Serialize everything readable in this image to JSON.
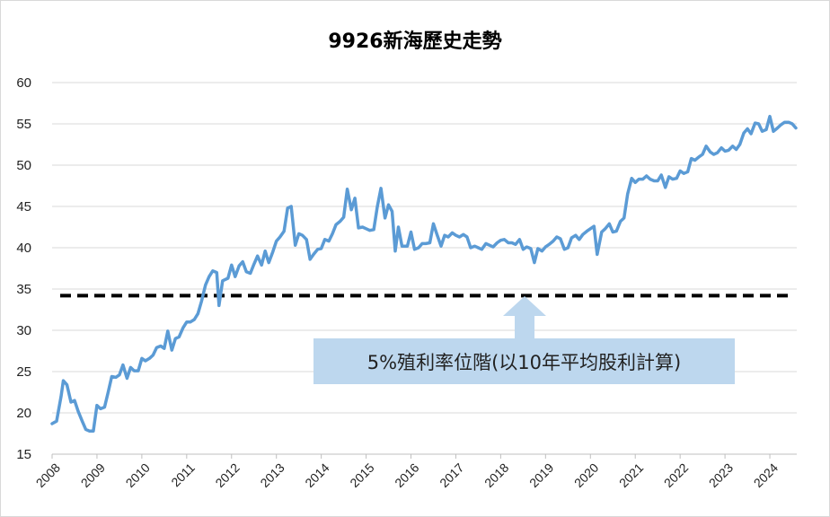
{
  "chart_data": {
    "type": "line",
    "title": "9926新海歷史走勢",
    "xlabel": "",
    "ylabel": "",
    "ylim": [
      15,
      60
    ],
    "yticks": [
      15,
      20,
      25,
      30,
      35,
      40,
      45,
      50,
      55,
      60
    ],
    "xlim": [
      2008,
      2024.6
    ],
    "xticks": [
      "2008",
      "2009",
      "2010",
      "2011",
      "2012",
      "2013",
      "2014",
      "2015",
      "2016",
      "2017",
      "2018",
      "2019",
      "2020",
      "2021",
      "2022",
      "2023",
      "2024"
    ],
    "grid": "horizontal",
    "series": [
      {
        "color": "#5b9bd5",
        "points": [
          [
            2008.0,
            18.7
          ],
          [
            2008.1,
            19.0
          ],
          [
            2008.2,
            22.0
          ],
          [
            2008.25,
            23.9
          ],
          [
            2008.33,
            23.4
          ],
          [
            2008.42,
            21.3
          ],
          [
            2008.5,
            21.5
          ],
          [
            2008.58,
            20.2
          ],
          [
            2008.67,
            19.0
          ],
          [
            2008.75,
            18.0
          ],
          [
            2008.83,
            17.8
          ],
          [
            2008.92,
            17.8
          ],
          [
            2009.0,
            20.9
          ],
          [
            2009.08,
            20.5
          ],
          [
            2009.17,
            20.7
          ],
          [
            2009.25,
            22.5
          ],
          [
            2009.33,
            24.4
          ],
          [
            2009.42,
            24.3
          ],
          [
            2009.5,
            24.6
          ],
          [
            2009.58,
            25.8
          ],
          [
            2009.67,
            24.2
          ],
          [
            2009.75,
            25.5
          ],
          [
            2009.83,
            25.1
          ],
          [
            2009.92,
            25.1
          ],
          [
            2010.0,
            26.6
          ],
          [
            2010.08,
            26.3
          ],
          [
            2010.17,
            26.6
          ],
          [
            2010.25,
            27.0
          ],
          [
            2010.33,
            27.9
          ],
          [
            2010.42,
            28.1
          ],
          [
            2010.5,
            27.8
          ],
          [
            2010.58,
            29.9
          ],
          [
            2010.67,
            27.6
          ],
          [
            2010.75,
            29.0
          ],
          [
            2010.83,
            29.2
          ],
          [
            2010.92,
            30.3
          ],
          [
            2011.0,
            31.0
          ],
          [
            2011.08,
            31.0
          ],
          [
            2011.17,
            31.3
          ],
          [
            2011.25,
            32.0
          ],
          [
            2011.33,
            33.5
          ],
          [
            2011.42,
            35.5
          ],
          [
            2011.5,
            36.5
          ],
          [
            2011.58,
            37.2
          ],
          [
            2011.67,
            37.0
          ],
          [
            2011.72,
            33.0
          ],
          [
            2011.8,
            36.0
          ],
          [
            2011.92,
            36.3
          ],
          [
            2012.0,
            37.9
          ],
          [
            2012.08,
            36.5
          ],
          [
            2012.17,
            37.8
          ],
          [
            2012.25,
            38.3
          ],
          [
            2012.33,
            37.1
          ],
          [
            2012.42,
            36.9
          ],
          [
            2012.5,
            38.0
          ],
          [
            2012.58,
            39.0
          ],
          [
            2012.67,
            37.9
          ],
          [
            2012.75,
            39.6
          ],
          [
            2012.83,
            38.2
          ],
          [
            2012.92,
            39.5
          ],
          [
            2013.0,
            40.8
          ],
          [
            2013.08,
            41.3
          ],
          [
            2013.17,
            42.0
          ],
          [
            2013.25,
            44.8
          ],
          [
            2013.33,
            45.0
          ],
          [
            2013.42,
            40.3
          ],
          [
            2013.5,
            41.7
          ],
          [
            2013.58,
            41.5
          ],
          [
            2013.67,
            41.0
          ],
          [
            2013.75,
            38.6
          ],
          [
            2013.83,
            39.2
          ],
          [
            2013.92,
            39.8
          ],
          [
            2014.0,
            39.9
          ],
          [
            2014.08,
            41.0
          ],
          [
            2014.17,
            40.8
          ],
          [
            2014.25,
            41.7
          ],
          [
            2014.33,
            42.8
          ],
          [
            2014.42,
            43.2
          ],
          [
            2014.5,
            43.7
          ],
          [
            2014.58,
            47.1
          ],
          [
            2014.67,
            44.6
          ],
          [
            2014.75,
            46.0
          ],
          [
            2014.83,
            42.4
          ],
          [
            2014.92,
            42.5
          ],
          [
            2015.0,
            42.3
          ],
          [
            2015.08,
            42.1
          ],
          [
            2015.17,
            42.2
          ],
          [
            2015.25,
            45.0
          ],
          [
            2015.33,
            47.2
          ],
          [
            2015.42,
            43.6
          ],
          [
            2015.5,
            45.2
          ],
          [
            2015.58,
            44.4
          ],
          [
            2015.65,
            39.6
          ],
          [
            2015.72,
            42.5
          ],
          [
            2015.8,
            40.2
          ],
          [
            2015.92,
            40.2
          ],
          [
            2016.0,
            41.9
          ],
          [
            2016.08,
            39.8
          ],
          [
            2016.17,
            40.0
          ],
          [
            2016.25,
            40.5
          ],
          [
            2016.33,
            40.5
          ],
          [
            2016.42,
            40.6
          ],
          [
            2016.5,
            42.9
          ],
          [
            2016.58,
            41.6
          ],
          [
            2016.67,
            40.2
          ],
          [
            2016.75,
            41.5
          ],
          [
            2016.83,
            41.3
          ],
          [
            2016.92,
            41.8
          ],
          [
            2017.0,
            41.5
          ],
          [
            2017.08,
            41.3
          ],
          [
            2017.17,
            41.6
          ],
          [
            2017.25,
            41.3
          ],
          [
            2017.33,
            40.0
          ],
          [
            2017.42,
            40.2
          ],
          [
            2017.5,
            40.0
          ],
          [
            2017.58,
            39.8
          ],
          [
            2017.67,
            40.5
          ],
          [
            2017.75,
            40.3
          ],
          [
            2017.83,
            40.1
          ],
          [
            2017.92,
            40.6
          ],
          [
            2018.0,
            40.9
          ],
          [
            2018.08,
            41.0
          ],
          [
            2018.17,
            40.6
          ],
          [
            2018.25,
            40.6
          ],
          [
            2018.33,
            40.4
          ],
          [
            2018.42,
            41.0
          ],
          [
            2018.5,
            39.8
          ],
          [
            2018.58,
            40.1
          ],
          [
            2018.67,
            39.9
          ],
          [
            2018.75,
            38.2
          ],
          [
            2018.83,
            39.9
          ],
          [
            2018.92,
            39.6
          ],
          [
            2019.0,
            40.1
          ],
          [
            2019.08,
            40.4
          ],
          [
            2019.17,
            40.8
          ],
          [
            2019.25,
            41.3
          ],
          [
            2019.33,
            41.1
          ],
          [
            2019.42,
            39.8
          ],
          [
            2019.5,
            40.0
          ],
          [
            2019.58,
            41.2
          ],
          [
            2019.67,
            41.5
          ],
          [
            2019.75,
            41.0
          ],
          [
            2019.83,
            41.6
          ],
          [
            2019.92,
            42.0
          ],
          [
            2020.0,
            42.3
          ],
          [
            2020.08,
            42.6
          ],
          [
            2020.15,
            39.2
          ],
          [
            2020.25,
            41.9
          ],
          [
            2020.33,
            42.3
          ],
          [
            2020.42,
            42.9
          ],
          [
            2020.5,
            41.9
          ],
          [
            2020.58,
            42.0
          ],
          [
            2020.67,
            43.2
          ],
          [
            2020.75,
            43.6
          ],
          [
            2020.83,
            46.5
          ],
          [
            2020.92,
            48.4
          ],
          [
            2021.0,
            47.9
          ],
          [
            2021.08,
            48.3
          ],
          [
            2021.17,
            48.3
          ],
          [
            2021.25,
            48.7
          ],
          [
            2021.33,
            48.3
          ],
          [
            2021.42,
            48.1
          ],
          [
            2021.5,
            48.1
          ],
          [
            2021.58,
            48.8
          ],
          [
            2021.67,
            47.3
          ],
          [
            2021.75,
            48.6
          ],
          [
            2021.83,
            48.3
          ],
          [
            2021.92,
            48.4
          ],
          [
            2022.0,
            49.3
          ],
          [
            2022.08,
            49.0
          ],
          [
            2022.17,
            49.2
          ],
          [
            2022.25,
            50.8
          ],
          [
            2022.33,
            50.6
          ],
          [
            2022.42,
            51.0
          ],
          [
            2022.5,
            51.3
          ],
          [
            2022.58,
            52.3
          ],
          [
            2022.67,
            51.6
          ],
          [
            2022.75,
            51.3
          ],
          [
            2022.83,
            51.5
          ],
          [
            2022.92,
            52.1
          ],
          [
            2023.0,
            51.7
          ],
          [
            2023.08,
            51.8
          ],
          [
            2023.17,
            52.3
          ],
          [
            2023.25,
            51.9
          ],
          [
            2023.33,
            52.5
          ],
          [
            2023.42,
            53.9
          ],
          [
            2023.5,
            54.4
          ],
          [
            2023.58,
            53.8
          ],
          [
            2023.67,
            55.1
          ],
          [
            2023.75,
            55.0
          ],
          [
            2023.83,
            54.1
          ],
          [
            2023.92,
            54.3
          ],
          [
            2024.0,
            55.9
          ],
          [
            2024.08,
            54.1
          ],
          [
            2024.17,
            54.5
          ],
          [
            2024.25,
            54.9
          ],
          [
            2024.33,
            55.2
          ],
          [
            2024.42,
            55.2
          ],
          [
            2024.5,
            55.0
          ],
          [
            2024.58,
            54.5
          ]
        ]
      }
    ],
    "reference_line": {
      "value": 34.2,
      "color": "#000000",
      "style": "dashed"
    },
    "annotation": {
      "text": "5%殖利率位階(以10年平均股利計算)",
      "box_color": "#bdd7ee",
      "arrow_color": "#bdd7ee"
    }
  }
}
